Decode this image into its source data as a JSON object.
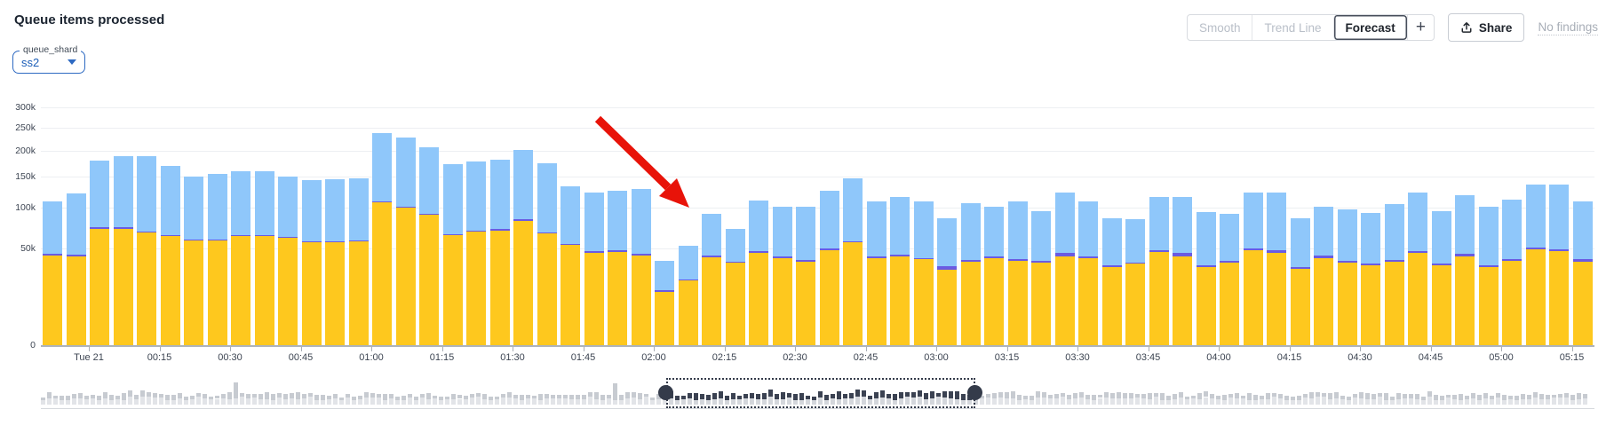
{
  "header": {
    "title": "Queue items processed"
  },
  "toolbar": {
    "smooth": "Smooth",
    "trend_line": "Trend Line",
    "forecast": "Forecast",
    "active_button": "Forecast",
    "plus": "+",
    "share": "Share",
    "no_findings": "No findings"
  },
  "filter": {
    "label": "queue_shard",
    "value": "ss2"
  },
  "colors": {
    "bar_yellow": "#fec81e",
    "bar_purple": "#6a5be2",
    "bar_blue": "#8fc7fa",
    "arrow_red": "#e81309",
    "accent_blue": "#2e6ac2",
    "grid": "#edeff2"
  },
  "chart_data": {
    "type": "bar",
    "stacked": true,
    "title": "Queue items processed",
    "y_scale": "sqrt",
    "unit": "k (thousands of items)",
    "ylim": [
      0,
      300
    ],
    "y_gridlines": [
      300,
      250,
      200,
      150,
      100,
      50
    ],
    "y_ticks": [
      {
        "label": "300k",
        "value": 300
      },
      {
        "label": "250k",
        "value": 250
      },
      {
        "label": "200k",
        "value": 200
      },
      {
        "label": "150k",
        "value": 150
      },
      {
        "label": "100k",
        "value": 100
      },
      {
        "label": "50k",
        "value": 50
      },
      {
        "label": "0",
        "value": 0
      }
    ],
    "x": [
      "23:50",
      "23:55",
      "00:00",
      "00:05",
      "00:10",
      "00:15",
      "00:20",
      "00:25",
      "00:30",
      "00:35",
      "00:40",
      "00:45",
      "00:50",
      "00:55",
      "01:00",
      "01:05",
      "01:10",
      "01:15",
      "01:20",
      "01:25",
      "01:30",
      "01:35",
      "01:40",
      "01:45",
      "01:50",
      "01:55",
      "02:00",
      "02:05",
      "02:10",
      "02:15",
      "02:20",
      "02:25",
      "02:30",
      "02:35",
      "02:40",
      "02:45",
      "02:50",
      "02:55",
      "03:00",
      "03:05",
      "03:10",
      "03:15",
      "03:20",
      "03:25",
      "03:30",
      "03:35",
      "03:40",
      "03:45",
      "03:50",
      "03:55",
      "04:00",
      "04:05",
      "04:10",
      "04:15",
      "04:20",
      "04:25",
      "04:30",
      "04:35",
      "04:40",
      "04:45",
      "04:50",
      "04:55",
      "05:00",
      "05:05",
      "05:10",
      "05:15"
    ],
    "x_tick_labels": [
      "Tue 21",
      "00:15",
      "00:30",
      "00:45",
      "01:00",
      "01:15",
      "01:30",
      "01:45",
      "02:00",
      "02:15",
      "02:30",
      "02:45",
      "03:00",
      "03:15",
      "03:30",
      "03:45",
      "04:00",
      "04:15",
      "04:30",
      "04:45",
      "05:00",
      "05:15"
    ],
    "series": [
      {
        "name": "yellow",
        "color": "#fec81e",
        "values": [
          43,
          42,
          72,
          72,
          67,
          63,
          58,
          58,
          63,
          63,
          61,
          56,
          56,
          57,
          108,
          100,
          90,
          64,
          68,
          70,
          82,
          66,
          53,
          45,
          46,
          43,
          15,
          22,
          41,
          36,
          45,
          40,
          37,
          48,
          56,
          40,
          42,
          39,
          30,
          37,
          40,
          38,
          36,
          42,
          40,
          32,
          35,
          46,
          42,
          32,
          36,
          48,
          45,
          31,
          40,
          36,
          34,
          37,
          45,
          34,
          42,
          32,
          38,
          49,
          47,
          37
        ]
      },
      {
        "name": "purple",
        "color": "#6a5be2",
        "values": [
          1.5,
          1.5,
          1.5,
          1.5,
          1.5,
          1.5,
          1.5,
          1.5,
          1.5,
          1.5,
          1.5,
          1.5,
          1.5,
          1.5,
          2,
          1.5,
          1.5,
          1.5,
          1.5,
          1.5,
          2,
          1.5,
          1.5,
          1.5,
          1.5,
          1.5,
          1,
          1,
          1.5,
          1,
          1.5,
          1.5,
          1.5,
          1.5,
          1.5,
          1.5,
          1.5,
          1.5,
          3,
          1.5,
          1.5,
          1.5,
          1.5,
          3,
          1.5,
          1.5,
          1.5,
          1.5,
          3,
          1.5,
          1.5,
          1.5,
          2.5,
          1.5,
          2.5,
          1.5,
          1.5,
          1.5,
          1.5,
          1.5,
          2.5,
          1.5,
          1.5,
          1.5,
          1.5,
          2.5
        ]
      },
      {
        "name": "blue",
        "color": "#8fc7fa",
        "values": [
          64.5,
          78.5,
          107.5,
          116.5,
          121.5,
          105.5,
          91.5,
          95.5,
          95.5,
          95.5,
          88.5,
          86.5,
          88.5,
          89.5,
          129,
          127.5,
          116.5,
          107.5,
          109.5,
          110.5,
          118,
          108.5,
          79.5,
          77.5,
          78.5,
          85.5,
          22,
          29,
          49.5,
          35,
          64.5,
          60.5,
          63.5,
          76.5,
          90.5,
          67.5,
          72.5,
          68.5,
          53,
          68.5,
          60.5,
          70.5,
          57.5,
          78,
          68.5,
          51.5,
          47.5,
          69.5,
          71,
          60.5,
          54.5,
          74.5,
          76.5,
          52.5,
          58.5,
          60.5,
          57.5,
          67.5,
          77.5,
          59.5,
          75.5,
          68.5,
          73.5,
          86.5,
          88.5,
          70.5
        ]
      }
    ],
    "annotation": {
      "type": "arrow",
      "color": "#e81309",
      "points_to": "dip at 02:00-02:05"
    },
    "legend_position": "none",
    "grid": true
  },
  "minimap": {
    "bar_count": 249,
    "colors": {
      "body": "#e2e4e8",
      "cap": "#c7cbd1",
      "body_selected": "#d4d7dc",
      "cap_selected": "#3b4252",
      "brush": "#343b4a",
      "axis_line": "#d6d9dd"
    }
  }
}
